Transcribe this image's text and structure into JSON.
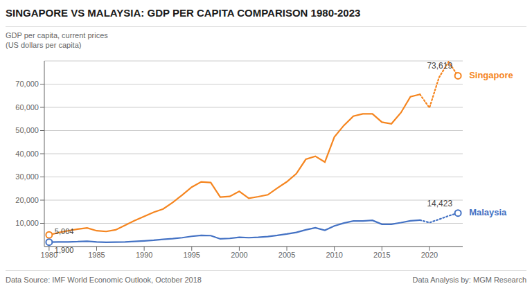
{
  "chart_data": {
    "type": "line",
    "title": "SINGAPORE VS MALAYSIA: GDP PER CAPITA COMPARISON 1980-2023",
    "ylabel": [
      "GDP per capita, current prices",
      "(US dollars per capita)"
    ],
    "source": [
      "Data Source: IMF World Economic Outlook, October 2018",
      "Data Analysis by: MGM Research"
    ],
    "x": [
      1980,
      1981,
      1982,
      1983,
      1984,
      1985,
      1986,
      1987,
      1988,
      1989,
      1990,
      1991,
      1992,
      1993,
      1994,
      1995,
      1996,
      1997,
      1998,
      1999,
      2000,
      2001,
      2002,
      2003,
      2004,
      2005,
      2006,
      2007,
      2008,
      2009,
      2010,
      2011,
      2012,
      2013,
      2014,
      2015,
      2016,
      2017,
      2018,
      2019,
      2020,
      2021,
      2022,
      2023
    ],
    "series": [
      {
        "name": "Singapore",
        "color": "#f5851f",
        "line_style": "solid",
        "values": [
          5004,
          6000,
          6800,
          7500,
          8000,
          6800,
          6500,
          7200,
          9200,
          11200,
          13000,
          14800,
          16200,
          19000,
          22200,
          25600,
          27900,
          27600,
          21300,
          21600,
          23800,
          20800,
          21500,
          22300,
          25200,
          27900,
          31400,
          37600,
          38900,
          36400,
          47200,
          52200,
          56200,
          57200,
          57200,
          53600,
          52900,
          57700,
          64600,
          65600,
          59800,
          72800,
          79600,
          73619
        ]
      },
      {
        "name": "Malaysia",
        "color": "#4472c4",
        "line_style": "solid",
        "values": [
          1900,
          1950,
          2000,
          2100,
          2300,
          2000,
          1800,
          1900,
          2000,
          2200,
          2450,
          2700,
          3100,
          3400,
          3800,
          4400,
          4800,
          4700,
          3300,
          3500,
          4000,
          3800,
          4000,
          4300,
          4800,
          5400,
          6100,
          7200,
          8100,
          7000,
          8900,
          10100,
          11000,
          11000,
          11300,
          9600,
          9600,
          10300,
          11100,
          11400,
          10300,
          11700,
          13200,
          14423
        ]
      }
    ],
    "projection_from": 2019,
    "annotations": [
      {
        "text": "73,619",
        "x": 2023,
        "y": 73619,
        "series": "Singapore"
      },
      {
        "text": "14,423",
        "x": 2023,
        "y": 14423,
        "series": "Malaysia"
      },
      {
        "text": "5,004",
        "x": 1980,
        "y": 5004,
        "series": "Singapore"
      },
      {
        "text": "1,900",
        "x": 1980,
        "y": 1900,
        "series": "Malaysia"
      }
    ],
    "xlim": [
      1979.5,
      2023.5
    ],
    "xticks": [
      1980,
      1985,
      1990,
      1995,
      2000,
      2005,
      2010,
      2015,
      2020
    ],
    "ylim": [
      0,
      80000
    ],
    "yticks": [
      {
        "value": 10000,
        "label": "10,000"
      },
      {
        "value": 20000,
        "label": "20,000"
      },
      {
        "value": 30000,
        "label": "30,000"
      },
      {
        "value": 40000,
        "label": "40,000"
      },
      {
        "value": 50000,
        "label": "50,000"
      },
      {
        "value": 60000,
        "label": "60,000"
      },
      {
        "value": 70000,
        "label": "70,000"
      }
    ],
    "grid": true
  }
}
